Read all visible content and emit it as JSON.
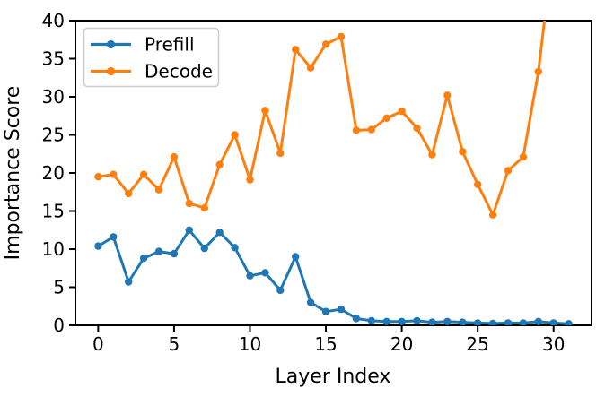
{
  "figure": {
    "background": "#ffffff",
    "spine_color": "#000000"
  },
  "chart_data": {
    "type": "line",
    "title": "",
    "xlabel": "Layer Index",
    "ylabel": "Importance Score",
    "x": [
      0,
      1,
      2,
      3,
      4,
      5,
      6,
      7,
      8,
      9,
      10,
      11,
      12,
      13,
      14,
      15,
      16,
      17,
      18,
      19,
      20,
      21,
      22,
      23,
      24,
      25,
      26,
      27,
      28,
      29,
      30,
      31
    ],
    "series": [
      {
        "name": "Prefill",
        "color": "#1f77b4",
        "values": [
          10.4,
          11.6,
          5.7,
          8.8,
          9.7,
          9.4,
          12.5,
          10.1,
          12.2,
          10.2,
          6.5,
          6.9,
          4.6,
          9.0,
          3.0,
          1.8,
          2.1,
          0.9,
          0.6,
          0.5,
          0.5,
          0.6,
          0.4,
          0.5,
          0.4,
          0.3,
          0.25,
          0.3,
          0.3,
          0.5,
          0.3,
          0.2
        ]
      },
      {
        "name": "Decode",
        "color": "#ff7f0e",
        "values": [
          19.5,
          19.8,
          17.3,
          19.8,
          17.8,
          22.1,
          16.0,
          15.4,
          21.1,
          25.0,
          19.1,
          28.2,
          22.6,
          36.2,
          33.8,
          36.9,
          37.9,
          25.6,
          25.7,
          27.2,
          28.1,
          25.9,
          22.4,
          30.2,
          22.8,
          18.5,
          14.5,
          20.3,
          22.1,
          33.3,
          50.0,
          null
        ]
      }
    ],
    "xlim": [
      -1.5,
      32.5
    ],
    "ylim": [
      0,
      40
    ],
    "xticks": [
      0,
      5,
      10,
      15,
      20,
      25,
      30
    ],
    "yticks": [
      0,
      5,
      10,
      15,
      20,
      25,
      30,
      35,
      40
    ],
    "grid": false,
    "legend_position": "upper left",
    "legend_border_color": "#cccccc"
  }
}
